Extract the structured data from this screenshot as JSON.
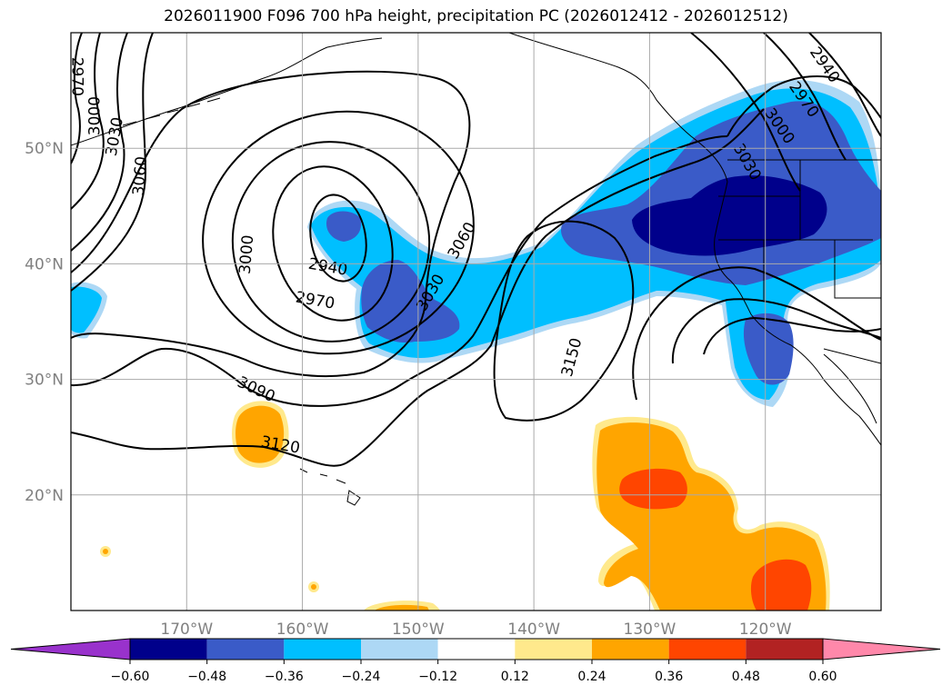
{
  "chart_data": {
    "type": "contour-map",
    "title": "2026011900 F096 700 hPa height, precipitation PC (2026012412 - 2026012512)",
    "variable_contours": "700 hPa geopotential height",
    "variable_shaded": "precipitation PC",
    "lon_range": [
      -180,
      -110
    ],
    "lat_range": [
      10,
      60
    ],
    "x_ticks": [
      {
        "lon": -170,
        "label": "170°W"
      },
      {
        "lon": -160,
        "label": "160°W"
      },
      {
        "lon": -150,
        "label": "150°W"
      },
      {
        "lon": -140,
        "label": "140°W"
      },
      {
        "lon": -130,
        "label": "130°W"
      },
      {
        "lon": -120,
        "label": "120°W"
      }
    ],
    "y_ticks": [
      {
        "lat": 20,
        "label": "20°N"
      },
      {
        "lat": 30,
        "label": "30°N"
      },
      {
        "lat": 40,
        "label": "40°N"
      },
      {
        "lat": 50,
        "label": "50°N"
      }
    ],
    "contour_levels": [
      2940,
      2970,
      3000,
      3030,
      3060,
      3090,
      3120,
      3150
    ],
    "contour_labels": [
      {
        "text": "2970",
        "lon": -179.5,
        "lat": 56.2,
        "rot": 90
      },
      {
        "text": "3000",
        "lon": -177.9,
        "lat": 52.8,
        "rot": -90
      },
      {
        "text": "3030",
        "lon": -176.2,
        "lat": 51.0,
        "rot": -80
      },
      {
        "text": "3060",
        "lon": -174.0,
        "lat": 47.6,
        "rot": -85
      },
      {
        "text": "3000",
        "lon": -164.8,
        "lat": 40.8,
        "rot": -85
      },
      {
        "text": "2940",
        "lon": -157.8,
        "lat": 39.7,
        "rot": 10
      },
      {
        "text": "2970",
        "lon": -158.9,
        "lat": 36.8,
        "rot": 10
      },
      {
        "text": "3030",
        "lon": -148.9,
        "lat": 37.5,
        "rot": -60
      },
      {
        "text": "3060",
        "lon": -146.2,
        "lat": 42.0,
        "rot": -60
      },
      {
        "text": "3150",
        "lon": -136.7,
        "lat": 31.9,
        "rot": -75
      },
      {
        "text": "3090",
        "lon": -164.0,
        "lat": 29.1,
        "rot": 25
      },
      {
        "text": "3120",
        "lon": -161.9,
        "lat": 24.3,
        "rot": 10
      },
      {
        "text": "2940",
        "lon": -114.9,
        "lat": 57.2,
        "rot": 55
      },
      {
        "text": "2970",
        "lon": -116.7,
        "lat": 54.2,
        "rot": 55
      },
      {
        "text": "3000",
        "lon": -118.8,
        "lat": 51.9,
        "rot": 55
      },
      {
        "text": "3030",
        "lon": -121.6,
        "lat": 48.8,
        "rot": 60
      }
    ],
    "colorbar": {
      "boundaries": [
        -0.6,
        -0.48,
        -0.36,
        -0.24,
        -0.12,
        0.12,
        0.24,
        0.36,
        0.48,
        0.6
      ],
      "tick_labels": [
        "−0.60",
        "−0.48",
        "−0.36",
        "−0.24",
        "−0.12",
        "0.12",
        "0.24",
        "0.36",
        "0.48",
        "0.60"
      ],
      "under_color": "#9932cc",
      "over_color": "#ff88aa",
      "colors": [
        "#00008b",
        "#3a5bc8",
        "#00bfff",
        "#add8f5",
        "#ffffff",
        "#ffe98c",
        "#ffa500",
        "#ff4500",
        "#b22222"
      ],
      "extend": "both"
    }
  }
}
